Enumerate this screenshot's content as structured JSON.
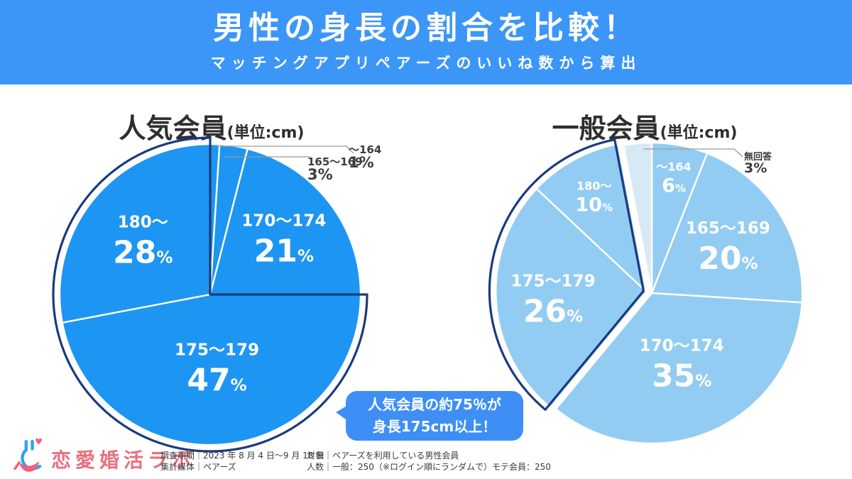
{
  "header": {
    "title": "男性の身長の割合を比較！",
    "subtitle": "マッチングアプリペアーズのいいね数から算出",
    "bg_color": "#3B96F8"
  },
  "chart_data": [
    {
      "type": "pie",
      "title": "人気会員",
      "unit_label": "(単位:cm)",
      "percent_symbol": "%",
      "legend_position": "none",
      "start_angle": "12-oclock-clockwise",
      "categories": [
        "～164",
        "165～169",
        "170～174",
        "175～179",
        "180～"
      ],
      "values": [
        1,
        3,
        21,
        47,
        28
      ],
      "slices": [
        {
          "label": "～164",
          "value": 1,
          "style": "outside",
          "label_r": 1.0
        },
        {
          "label": "165～169",
          "value": 3,
          "style": "outside",
          "label_r": 1.0
        },
        {
          "label": "170～174",
          "value": 21,
          "style": "inside-big",
          "label_r": 0.62
        },
        {
          "label": "175～179",
          "value": 47,
          "style": "inside-big",
          "label_r": 0.48
        },
        {
          "label": "180～",
          "value": 28,
          "style": "inside-big",
          "label_r": 0.58
        }
      ],
      "highlight_group": [
        "175～179",
        "180～"
      ],
      "colors": {
        "fill": "#1D95F2",
        "slice_border": "#FFFFFF",
        "highlight_outline": "#1A3B7E",
        "label_text": "#FFFFFF"
      }
    },
    {
      "type": "pie",
      "title": "一般会員",
      "unit_label": "(単位:cm)",
      "percent_symbol": "%",
      "legend_position": "none",
      "start_angle": "12-oclock-clockwise",
      "categories": [
        "～164",
        "165～169",
        "170～174",
        "175～179",
        "180～",
        "無回答"
      ],
      "values": [
        6,
        20,
        35,
        26,
        10,
        3
      ],
      "slices": [
        {
          "label": "～164",
          "value": 6,
          "style": "inside-small",
          "label_r": 0.78
        },
        {
          "label": "165～169",
          "value": 20,
          "style": "inside-big",
          "label_r": 0.6
        },
        {
          "label": "170～174",
          "value": 35,
          "style": "inside-big",
          "label_r": 0.5
        },
        {
          "label": "175～179",
          "value": 26,
          "style": "inside-big",
          "label_r": 0.62
        },
        {
          "label": "180～",
          "value": 10,
          "style": "inside-small",
          "label_r": 0.72
        },
        {
          "label": "無回答",
          "value": 3,
          "style": "outside",
          "label_r": 1.0,
          "fill": "#D8E9F6"
        }
      ],
      "highlight_group": [
        "175～179",
        "180～"
      ],
      "colors": {
        "fill": "#93CCF2",
        "slice_border": "#FFFFFF",
        "highlight_outline": "#1A3B7E",
        "label_text": "#FFFFFF"
      }
    }
  ],
  "callout": {
    "line1": "人気会員の約75％が",
    "line2": "身長175cm以上！",
    "bg_color": "#3E8EF6"
  },
  "footer": {
    "logo_text": "恋愛婚活ラボ",
    "survey_period_line": "調査期間｜2023 年 8 月 4 日～9 月 18 日",
    "media_line": "集計媒体｜ペアーズ",
    "target_line": "対象｜ペアーズを利用している男性会員",
    "count_line": "人数｜一般：250（※ログイン順にランダムで）モテ会員：250"
  }
}
